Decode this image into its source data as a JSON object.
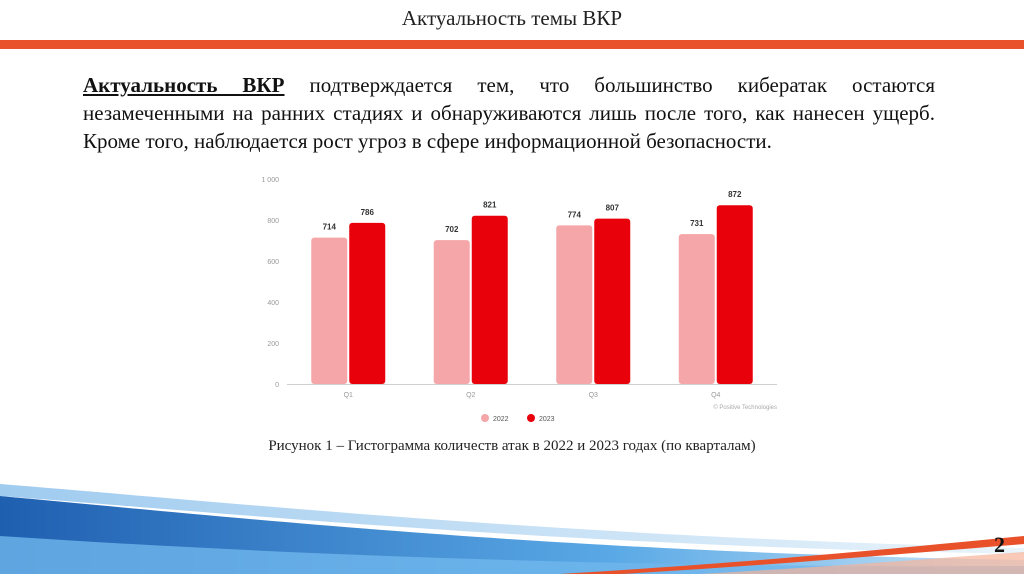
{
  "slide": {
    "title": "Актуальность темы ВКР",
    "paragraph_lead": "Актуальность ВКР",
    "paragraph_rest": " подтверждается тем, что большинство кибератак остаются незамеченными на ранних стадиях и обнаруживаются лишь после того, как нанесен ущерб. Кроме того, наблюдается рост угроз в сфере информационной безопасности.",
    "caption": "Рисунок 1 – Гистограмма количеств атак в 2022 и 2023 годах (по кварталам)",
    "page_number": "2",
    "accent_color": "#e8512a"
  },
  "chart_data": {
    "type": "bar",
    "categories": [
      "Q1",
      "Q2",
      "Q3",
      "Q4"
    ],
    "series": [
      {
        "name": "2022",
        "values": [
          714,
          702,
          774,
          731
        ],
        "color": "#f4a6a8"
      },
      {
        "name": "2023",
        "values": [
          786,
          821,
          807,
          872
        ],
        "color": "#e8000b"
      }
    ],
    "ylim": [
      0,
      1000
    ],
    "yticks": [
      0,
      200,
      400,
      600,
      800,
      1000
    ],
    "ytick_labels": [
      "0",
      "200",
      "400",
      "600",
      "800",
      "1 000"
    ],
    "grid": false,
    "legend": "bottom-center",
    "source_note": "© Positive Technologies"
  }
}
